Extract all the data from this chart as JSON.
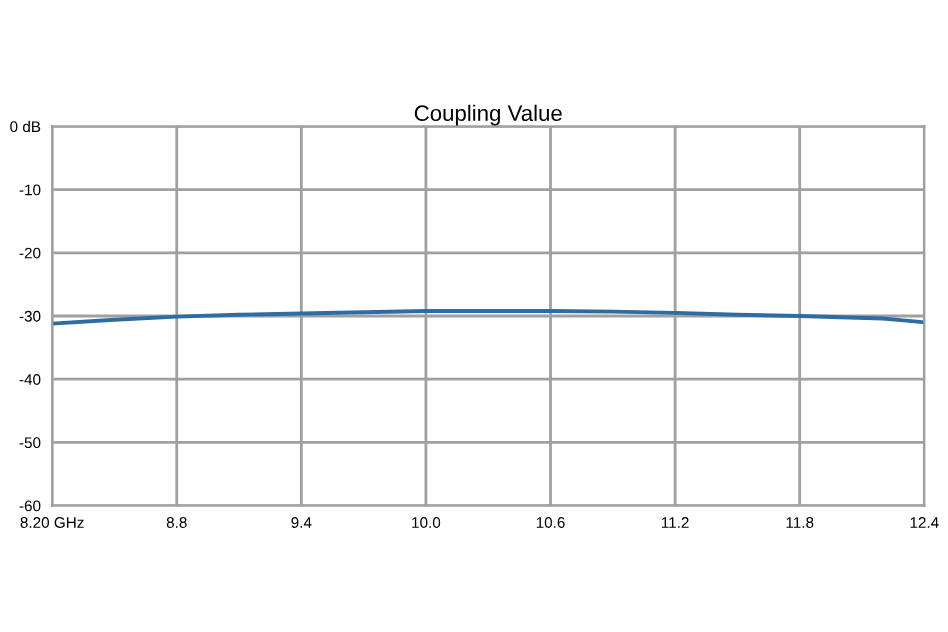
{
  "chart_data": {
    "type": "line",
    "title": "Coupling Value",
    "x": [
      8.2,
      8.5,
      8.8,
      9.1,
      9.4,
      9.7,
      10.0,
      10.3,
      10.6,
      10.9,
      11.2,
      11.5,
      11.8,
      12.0,
      12.2,
      12.3,
      12.4
    ],
    "series": [
      {
        "color": "#2e6da4",
        "values": [
          -31.2,
          -30.6,
          -30.1,
          -29.8,
          -29.6,
          -29.4,
          -29.2,
          -29.2,
          -29.2,
          -29.3,
          -29.5,
          -29.8,
          -30.0,
          -30.2,
          -30.4,
          -30.7,
          -31.0
        ]
      }
    ],
    "xlim": [
      8.2,
      12.4
    ],
    "xticks": [
      {
        "value": 8.2,
        "label": "8.20 GHz"
      },
      8.8,
      9.4,
      {
        "value": 10.0,
        "label": "10.0"
      },
      10.6,
      11.2,
      11.8,
      12.4
    ],
    "ylim": [
      -60,
      0
    ],
    "yticks": [
      {
        "value": 0,
        "label": "0 dB"
      },
      -10,
      -20,
      -30,
      -40,
      -50,
      -60
    ],
    "grid": true,
    "legend": false,
    "marker": "none",
    "line_style": "solid"
  }
}
